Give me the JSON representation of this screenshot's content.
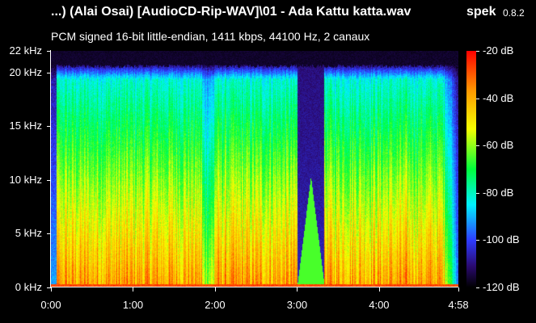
{
  "window": {
    "title": "...) (Alai Osai) [AudioCD-Rip-WAV]\\01 - Ada Kattu katta.wav",
    "app_name": "spek",
    "version": "0.8.2",
    "info": "PCM signed 16-bit little-endian, 1411 kbps, 44100 Hz, 2 canaux"
  },
  "freq_axis": {
    "labels": [
      "22 kHz",
      "20 kHz",
      "15 kHz",
      "10 kHz",
      "5 kHz",
      "0 kHz"
    ],
    "values_khz": [
      22,
      20,
      15,
      10,
      5,
      0
    ],
    "max_khz": 22
  },
  "time_axis": {
    "labels": [
      "0:00",
      "1:00",
      "2:00",
      "3:00",
      "4:00",
      "4:58"
    ],
    "values_s": [
      0,
      60,
      120,
      180,
      240,
      298
    ],
    "duration_s": 298
  },
  "db_scale": {
    "labels": [
      "-20 dB",
      "-40 dB",
      "-60 dB",
      "-80 dB",
      "-100 dB",
      "-120 dB"
    ],
    "values_db": [
      -20,
      -40,
      -60,
      -80,
      -100,
      -120
    ],
    "colors": [
      "#ff0000",
      "#ff9a00",
      "#f6ff00",
      "#00ff3c",
      "#00f2ff",
      "#2e3cff",
      "#2a0a70",
      "#000000"
    ]
  }
}
